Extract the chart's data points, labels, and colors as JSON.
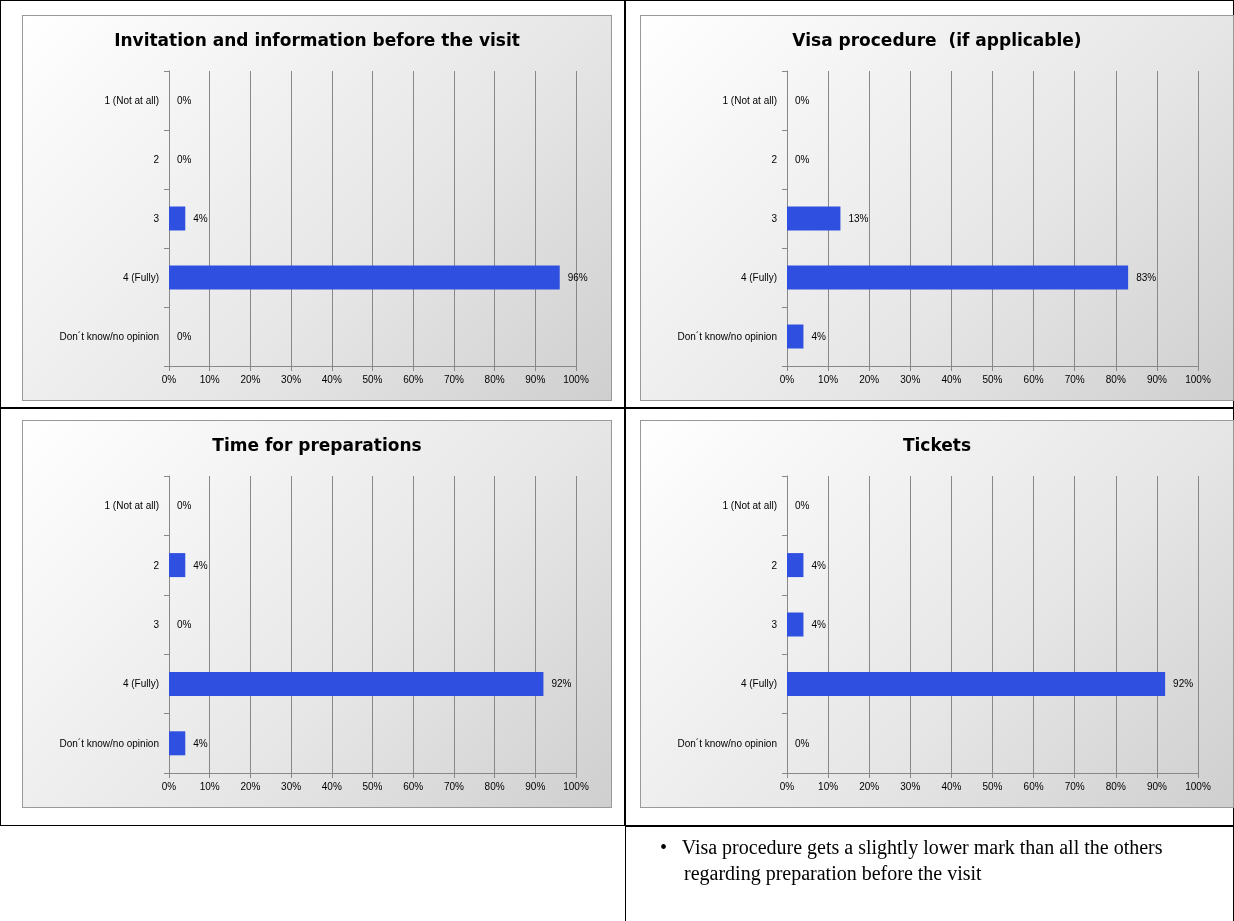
{
  "chart_data": [
    {
      "type": "bar",
      "orientation": "horizontal",
      "title": "Invitation and information before the visit",
      "categories": [
        "1 (Not at all)",
        "2",
        "3",
        "4 (Fully)",
        "Don´t know/no opinion"
      ],
      "values": [
        0,
        0,
        4,
        96,
        0
      ],
      "value_labels": [
        "0%",
        "0%",
        "4%",
        "96%",
        "0%"
      ],
      "color": "#2f4fe0",
      "xlim": [
        0,
        100
      ],
      "xticks": [
        {
          "value": 0,
          "label": "0%"
        },
        {
          "value": 10,
          "label": "10%"
        },
        {
          "value": 20,
          "label": "20%"
        },
        {
          "value": 30,
          "label": "30%"
        },
        {
          "value": 40,
          "label": "40%"
        },
        {
          "value": 50,
          "label": "50%"
        },
        {
          "value": 60,
          "label": "60%"
        },
        {
          "value": 70,
          "label": "70%"
        },
        {
          "value": 80,
          "label": "80%"
        },
        {
          "value": 90,
          "label": "90%"
        },
        {
          "value": 100,
          "label": "100%"
        }
      ],
      "grid": "x"
    },
    {
      "type": "bar",
      "orientation": "horizontal",
      "title": "Visa procedure  (if applicable)",
      "categories": [
        "1 (Not at all)",
        "2",
        "3",
        "4 (Fully)",
        "Don´t know/no opinion"
      ],
      "values": [
        0,
        0,
        13,
        83,
        4
      ],
      "value_labels": [
        "0%",
        "0%",
        "13%",
        "83%",
        "4%"
      ],
      "color": "#2f4fe0",
      "xlim": [
        0,
        100
      ],
      "xticks": [
        {
          "value": 0,
          "label": "0%"
        },
        {
          "value": 10,
          "label": "10%"
        },
        {
          "value": 20,
          "label": "20%"
        },
        {
          "value": 30,
          "label": "30%"
        },
        {
          "value": 40,
          "label": "40%"
        },
        {
          "value": 50,
          "label": "50%"
        },
        {
          "value": 60,
          "label": "60%"
        },
        {
          "value": 70,
          "label": "70%"
        },
        {
          "value": 80,
          "label": "80%"
        },
        {
          "value": 90,
          "label": "90%"
        },
        {
          "value": 100,
          "label": "100%"
        }
      ],
      "grid": "x"
    },
    {
      "type": "bar",
      "orientation": "horizontal",
      "title": "Time for preparations",
      "categories": [
        "1 (Not at all)",
        "2",
        "3",
        "4 (Fully)",
        "Don´t know/no opinion"
      ],
      "values": [
        0,
        4,
        0,
        92,
        4
      ],
      "value_labels": [
        "0%",
        "4%",
        "0%",
        "92%",
        "4%"
      ],
      "color": "#2f4fe0",
      "xlim": [
        0,
        100
      ],
      "xticks": [
        {
          "value": 0,
          "label": "0%"
        },
        {
          "value": 10,
          "label": "10%"
        },
        {
          "value": 20,
          "label": "20%"
        },
        {
          "value": 30,
          "label": "30%"
        },
        {
          "value": 40,
          "label": "40%"
        },
        {
          "value": 50,
          "label": "50%"
        },
        {
          "value": 60,
          "label": "60%"
        },
        {
          "value": 70,
          "label": "70%"
        },
        {
          "value": 80,
          "label": "80%"
        },
        {
          "value": 90,
          "label": "90%"
        },
        {
          "value": 100,
          "label": "100%"
        }
      ],
      "grid": "x"
    },
    {
      "type": "bar",
      "orientation": "horizontal",
      "title": "Tickets",
      "categories": [
        "1 (Not at all)",
        "2",
        "3",
        "4 (Fully)",
        "Don´t know/no opinion"
      ],
      "values": [
        0,
        4,
        4,
        92,
        0
      ],
      "value_labels": [
        "0%",
        "4%",
        "4%",
        "92%",
        "0%"
      ],
      "color": "#2f4fe0",
      "xlim": [
        0,
        100
      ],
      "xticks": [
        {
          "value": 0,
          "label": "0%"
        },
        {
          "value": 10,
          "label": "10%"
        },
        {
          "value": 20,
          "label": "20%"
        },
        {
          "value": 30,
          "label": "30%"
        },
        {
          "value": 40,
          "label": "40%"
        },
        {
          "value": 50,
          "label": "50%"
        },
        {
          "value": 60,
          "label": "60%"
        },
        {
          "value": 70,
          "label": "70%"
        },
        {
          "value": 80,
          "label": "80%"
        },
        {
          "value": 90,
          "label": "90%"
        },
        {
          "value": 100,
          "label": "100%"
        }
      ],
      "grid": "x"
    },
    {
      "type": "other",
      "annotations": [
        "•   Visa procedure gets a slightly lower mark than all the others regarding preparation before the visit"
      ]
    }
  ]
}
